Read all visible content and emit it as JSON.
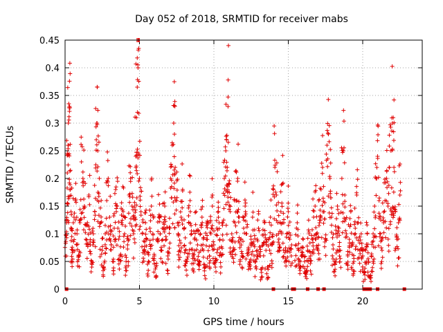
{
  "chart_data": {
    "type": "scatter",
    "title": "Day 052 of 2018, SRMTID for receiver mabs",
    "xlabel": "GPS time / hours",
    "ylabel": "SRMTID / TECUs",
    "xlim": [
      0,
      24
    ],
    "ylim": [
      0,
      0.45
    ],
    "xticks": [
      0,
      5,
      10,
      15,
      20
    ],
    "xtick_labels": [
      "0",
      "5",
      "10",
      "15",
      "20"
    ],
    "yticks": [
      0,
      0.05,
      0.1,
      0.15,
      0.2,
      0.25,
      0.3,
      0.35,
      0.4,
      0.45
    ],
    "ytick_labels": [
      "0",
      "0.05",
      "0.1",
      "0.15",
      "0.2",
      "0.25",
      "0.3",
      "0.35",
      "0.4",
      "0.45"
    ],
    "grid": true,
    "marker": "plus",
    "color": "#e00000",
    "series": [
      {
        "name": "SRMTID",
        "points": [
          [
            0.05,
            0.098
          ],
          [
            0.1,
            0.12
          ],
          [
            0.15,
            0.21
          ],
          [
            0.2,
            0.26
          ],
          [
            0.22,
            0.3
          ],
          [
            0.25,
            0.335
          ],
          [
            0.3,
            0.33
          ],
          [
            0.35,
            0.18
          ],
          [
            0.4,
            0.14
          ],
          [
            0.45,
            0.095
          ],
          [
            0.5,
            0.07
          ],
          [
            0.6,
            0.13
          ],
          [
            0.7,
            0.16
          ],
          [
            0.8,
            0.1
          ],
          [
            0.9,
            0.06
          ],
          [
            1.0,
            0.12
          ],
          [
            1.1,
            0.23
          ],
          [
            1.2,
            0.2
          ],
          [
            1.3,
            0.15
          ],
          [
            1.4,
            0.09
          ],
          [
            1.5,
            0.12
          ],
          [
            1.6,
            0.17
          ],
          [
            1.7,
            0.08
          ],
          [
            1.8,
            0.05
          ],
          [
            1.9,
            0.1
          ],
          [
            2.0,
            0.14
          ],
          [
            2.1,
            0.27
          ],
          [
            2.15,
            0.3
          ],
          [
            2.2,
            0.25
          ],
          [
            2.3,
            0.2
          ],
          [
            2.4,
            0.12
          ],
          [
            2.5,
            0.07
          ],
          [
            2.6,
            0.04
          ],
          [
            2.7,
            0.1
          ],
          [
            2.8,
            0.16
          ],
          [
            2.9,
            0.2
          ],
          [
            3.0,
            0.13
          ],
          [
            3.1,
            0.08
          ],
          [
            3.2,
            0.05
          ],
          [
            3.3,
            0.11
          ],
          [
            3.4,
            0.18
          ],
          [
            3.5,
            0.15
          ],
          [
            3.6,
            0.09
          ],
          [
            3.7,
            0.06
          ],
          [
            3.8,
            0.12
          ],
          [
            3.9,
            0.14
          ],
          [
            4.0,
            0.1
          ],
          [
            4.1,
            0.05
          ],
          [
            4.2,
            0.08
          ],
          [
            4.3,
            0.17
          ],
          [
            4.4,
            0.2
          ],
          [
            4.5,
            0.15
          ],
          [
            4.6,
            0.1
          ],
          [
            4.7,
            0.13
          ],
          [
            4.75,
            0.24
          ],
          [
            4.8,
            0.31
          ],
          [
            4.85,
            0.365
          ],
          [
            4.9,
            0.4
          ],
          [
            4.95,
            0.435
          ],
          [
            5.0,
            0.2
          ],
          [
            5.1,
            0.14
          ],
          [
            5.2,
            0.1
          ],
          [
            5.3,
            0.07
          ],
          [
            5.4,
            0.12
          ],
          [
            5.5,
            0.09
          ],
          [
            5.6,
            0.05
          ],
          [
            5.7,
            0.11
          ],
          [
            5.8,
            0.15
          ],
          [
            5.9,
            0.1
          ],
          [
            6.0,
            0.06
          ],
          [
            6.1,
            0.04
          ],
          [
            6.2,
            0.09
          ],
          [
            6.3,
            0.13
          ],
          [
            6.4,
            0.1
          ],
          [
            6.5,
            0.07
          ],
          [
            6.6,
            0.12
          ],
          [
            6.7,
            0.15
          ],
          [
            6.8,
            0.09
          ],
          [
            6.9,
            0.06
          ],
          [
            7.0,
            0.11
          ],
          [
            7.1,
            0.2
          ],
          [
            7.2,
            0.26
          ],
          [
            7.3,
            0.3
          ],
          [
            7.35,
            0.28
          ],
          [
            7.4,
            0.22
          ],
          [
            7.5,
            0.16
          ],
          [
            7.6,
            0.1
          ],
          [
            7.7,
            0.07
          ],
          [
            7.8,
            0.13
          ],
          [
            7.9,
            0.18
          ],
          [
            8.0,
            0.11
          ],
          [
            8.1,
            0.07
          ],
          [
            8.2,
            0.05
          ],
          [
            8.3,
            0.12
          ],
          [
            8.4,
            0.16
          ],
          [
            8.5,
            0.1
          ],
          [
            8.6,
            0.06
          ],
          [
            8.7,
            0.09
          ],
          [
            8.8,
            0.14
          ],
          [
            8.9,
            0.08
          ],
          [
            9.0,
            0.05
          ],
          [
            9.1,
            0.1
          ],
          [
            9.2,
            0.13
          ],
          [
            9.3,
            0.07
          ],
          [
            9.4,
            0.04
          ],
          [
            9.5,
            0.09
          ],
          [
            9.6,
            0.12
          ],
          [
            9.7,
            0.06
          ],
          [
            9.8,
            0.1
          ],
          [
            9.9,
            0.15
          ],
          [
            10.0,
            0.08
          ],
          [
            10.1,
            0.05
          ],
          [
            10.2,
            0.11
          ],
          [
            10.3,
            0.14
          ],
          [
            10.4,
            0.09
          ],
          [
            10.5,
            0.06
          ],
          [
            10.6,
            0.12
          ],
          [
            10.7,
            0.2
          ],
          [
            10.8,
            0.25
          ],
          [
            10.85,
            0.27
          ],
          [
            10.9,
            0.22
          ],
          [
            10.95,
            0.33
          ],
          [
            11.0,
            0.19
          ],
          [
            11.1,
            0.14
          ],
          [
            11.2,
            0.1
          ],
          [
            11.3,
            0.07
          ],
          [
            11.4,
            0.12
          ],
          [
            11.5,
            0.16
          ],
          [
            11.6,
            0.2
          ],
          [
            11.7,
            0.13
          ],
          [
            11.8,
            0.09
          ],
          [
            11.9,
            0.06
          ],
          [
            12.0,
            0.11
          ],
          [
            12.1,
            0.15
          ],
          [
            12.2,
            0.1
          ],
          [
            12.3,
            0.07
          ],
          [
            12.4,
            0.05
          ],
          [
            12.5,
            0.09
          ],
          [
            12.6,
            0.13
          ],
          [
            12.7,
            0.08
          ],
          [
            12.8,
            0.04
          ],
          [
            12.9,
            0.07
          ],
          [
            13.0,
            0.11
          ],
          [
            13.1,
            0.06
          ],
          [
            13.2,
            0.03
          ],
          [
            13.3,
            0.08
          ],
          [
            13.4,
            0.12
          ],
          [
            13.5,
            0.07
          ],
          [
            13.6,
            0.04
          ],
          [
            13.7,
            0.09
          ],
          [
            13.8,
            0.13
          ],
          [
            13.9,
            0.08
          ],
          [
            14.0,
            0.18
          ],
          [
            14.1,
            0.22
          ],
          [
            14.2,
            0.17
          ],
          [
            14.3,
            0.12
          ],
          [
            14.4,
            0.08
          ],
          [
            14.5,
            0.14
          ],
          [
            14.6,
            0.19
          ],
          [
            14.7,
            0.12
          ],
          [
            14.8,
            0.07
          ],
          [
            14.9,
            0.1
          ],
          [
            15.0,
            0.14
          ],
          [
            15.1,
            0.09
          ],
          [
            15.2,
            0.06
          ],
          [
            15.5,
            0.08
          ],
          [
            15.6,
            0.12
          ],
          [
            15.7,
            0.07
          ],
          [
            15.8,
            0.04
          ],
          [
            15.9,
            0.06
          ],
          [
            16.0,
            0.09
          ],
          [
            16.1,
            0.05
          ],
          [
            16.2,
            0.03
          ],
          [
            16.3,
            0.07
          ],
          [
            16.4,
            0.1
          ],
          [
            16.5,
            0.06
          ],
          [
            16.6,
            0.09
          ],
          [
            16.7,
            0.13
          ],
          [
            16.8,
            0.15
          ],
          [
            16.9,
            0.1
          ],
          [
            17.0,
            0.07
          ],
          [
            17.1,
            0.12
          ],
          [
            17.2,
            0.18
          ],
          [
            17.3,
            0.22
          ],
          [
            17.4,
            0.14
          ],
          [
            17.5,
            0.09
          ],
          [
            17.6,
            0.26
          ],
          [
            17.7,
            0.28
          ],
          [
            17.8,
            0.2
          ],
          [
            17.9,
            0.13
          ],
          [
            18.0,
            0.08
          ],
          [
            18.1,
            0.05
          ],
          [
            18.2,
            0.1
          ],
          [
            18.3,
            0.15
          ],
          [
            18.4,
            0.11
          ],
          [
            18.5,
            0.07
          ],
          [
            18.6,
            0.2
          ],
          [
            18.7,
            0.25
          ],
          [
            18.8,
            0.17
          ],
          [
            18.9,
            0.1
          ],
          [
            19.0,
            0.06
          ],
          [
            19.1,
            0.09
          ],
          [
            19.2,
            0.14
          ],
          [
            19.3,
            0.08
          ],
          [
            19.4,
            0.05
          ],
          [
            19.5,
            0.11
          ],
          [
            19.6,
            0.17
          ],
          [
            19.7,
            0.12
          ],
          [
            19.8,
            0.07
          ],
          [
            19.9,
            0.1
          ],
          [
            20.0,
            0.06
          ],
          [
            20.1,
            0.03
          ],
          [
            20.2,
            0.07
          ],
          [
            20.3,
            0.1
          ],
          [
            20.4,
            0.05
          ],
          [
            20.5,
            0.02
          ],
          [
            20.6,
            0.06
          ],
          [
            20.7,
            0.1
          ],
          [
            20.8,
            0.15
          ],
          [
            20.9,
            0.2
          ],
          [
            21.0,
            0.24
          ],
          [
            21.1,
            0.16
          ],
          [
            21.2,
            0.1
          ],
          [
            21.3,
            0.07
          ],
          [
            21.4,
            0.12
          ],
          [
            21.5,
            0.16
          ],
          [
            21.6,
            0.2
          ],
          [
            21.7,
            0.15
          ],
          [
            21.8,
            0.22
          ],
          [
            21.9,
            0.25
          ],
          [
            22.0,
            0.3
          ],
          [
            22.05,
            0.31
          ],
          [
            22.1,
            0.22
          ],
          [
            22.2,
            0.14
          ],
          [
            22.3,
            0.09
          ],
          [
            22.4,
            0.12
          ],
          [
            22.5,
            0.17
          ]
        ],
        "zero_points": [
          0.1,
          14.0,
          15.3,
          15.4,
          16.3,
          17.0,
          17.4,
          20.1,
          20.3,
          20.5,
          21.0,
          22.8
        ]
      }
    ]
  }
}
